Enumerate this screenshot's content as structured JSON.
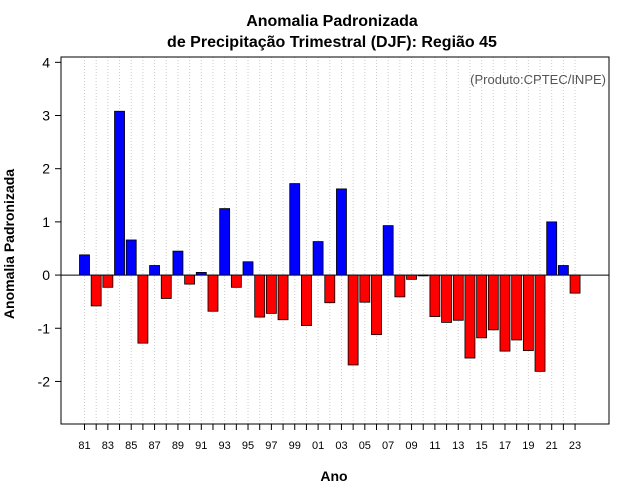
{
  "chart_data": {
    "type": "bar",
    "title": [
      "Anomalia Padronizada",
      "de Precipitação Trimestral (DJF): Região 45"
    ],
    "xlabel": "Ano",
    "ylabel": "Anomalia Padronizada",
    "annotation": "(Produto:CPTEC/INPE)",
    "ylim": [
      -2.8,
      4.1
    ],
    "yticks": [
      -2,
      -1,
      0,
      1,
      2,
      3,
      4
    ],
    "xtick_labels": [
      "81",
      "83",
      "85",
      "87",
      "89",
      "91",
      "93",
      "95",
      "97",
      "99",
      "01",
      "03",
      "05",
      "07",
      "09",
      "11",
      "13",
      "15",
      "17",
      "19",
      "21",
      "23"
    ],
    "grid": "vertical dotted",
    "colors": {
      "positive": "#0000ff",
      "negative": "#ff0000",
      "grid": "#cccccc",
      "axis": "#000000",
      "annotation": "#555555"
    },
    "categories": [
      "1981",
      "1982",
      "1983",
      "1984",
      "1985",
      "1986",
      "1987",
      "1988",
      "1989",
      "1990",
      "1991",
      "1992",
      "1993",
      "1994",
      "1995",
      "1996",
      "1997",
      "1998",
      "1999",
      "2000",
      "2001",
      "2002",
      "2003",
      "2004",
      "2005",
      "2006",
      "2007",
      "2008",
      "2009",
      "2010",
      "2011",
      "2012",
      "2013",
      "2014",
      "2015",
      "2016",
      "2017",
      "2018",
      "2019",
      "2020",
      "2021",
      "2022",
      "2023"
    ],
    "values": [
      0.38,
      -0.58,
      -0.23,
      3.08,
      0.66,
      -1.28,
      0.18,
      -0.44,
      0.45,
      -0.17,
      0.05,
      -0.68,
      1.25,
      -0.23,
      0.25,
      -0.79,
      -0.72,
      -0.84,
      1.72,
      -0.95,
      0.63,
      -0.52,
      1.62,
      -1.69,
      -0.51,
      -1.12,
      0.93,
      -0.41,
      -0.08,
      -0.01,
      -0.78,
      -0.89,
      -0.85,
      -1.56,
      -1.18,
      -1.03,
      -1.43,
      -1.22,
      -1.42,
      -1.81,
      1.0,
      0.18,
      -0.34
    ]
  }
}
